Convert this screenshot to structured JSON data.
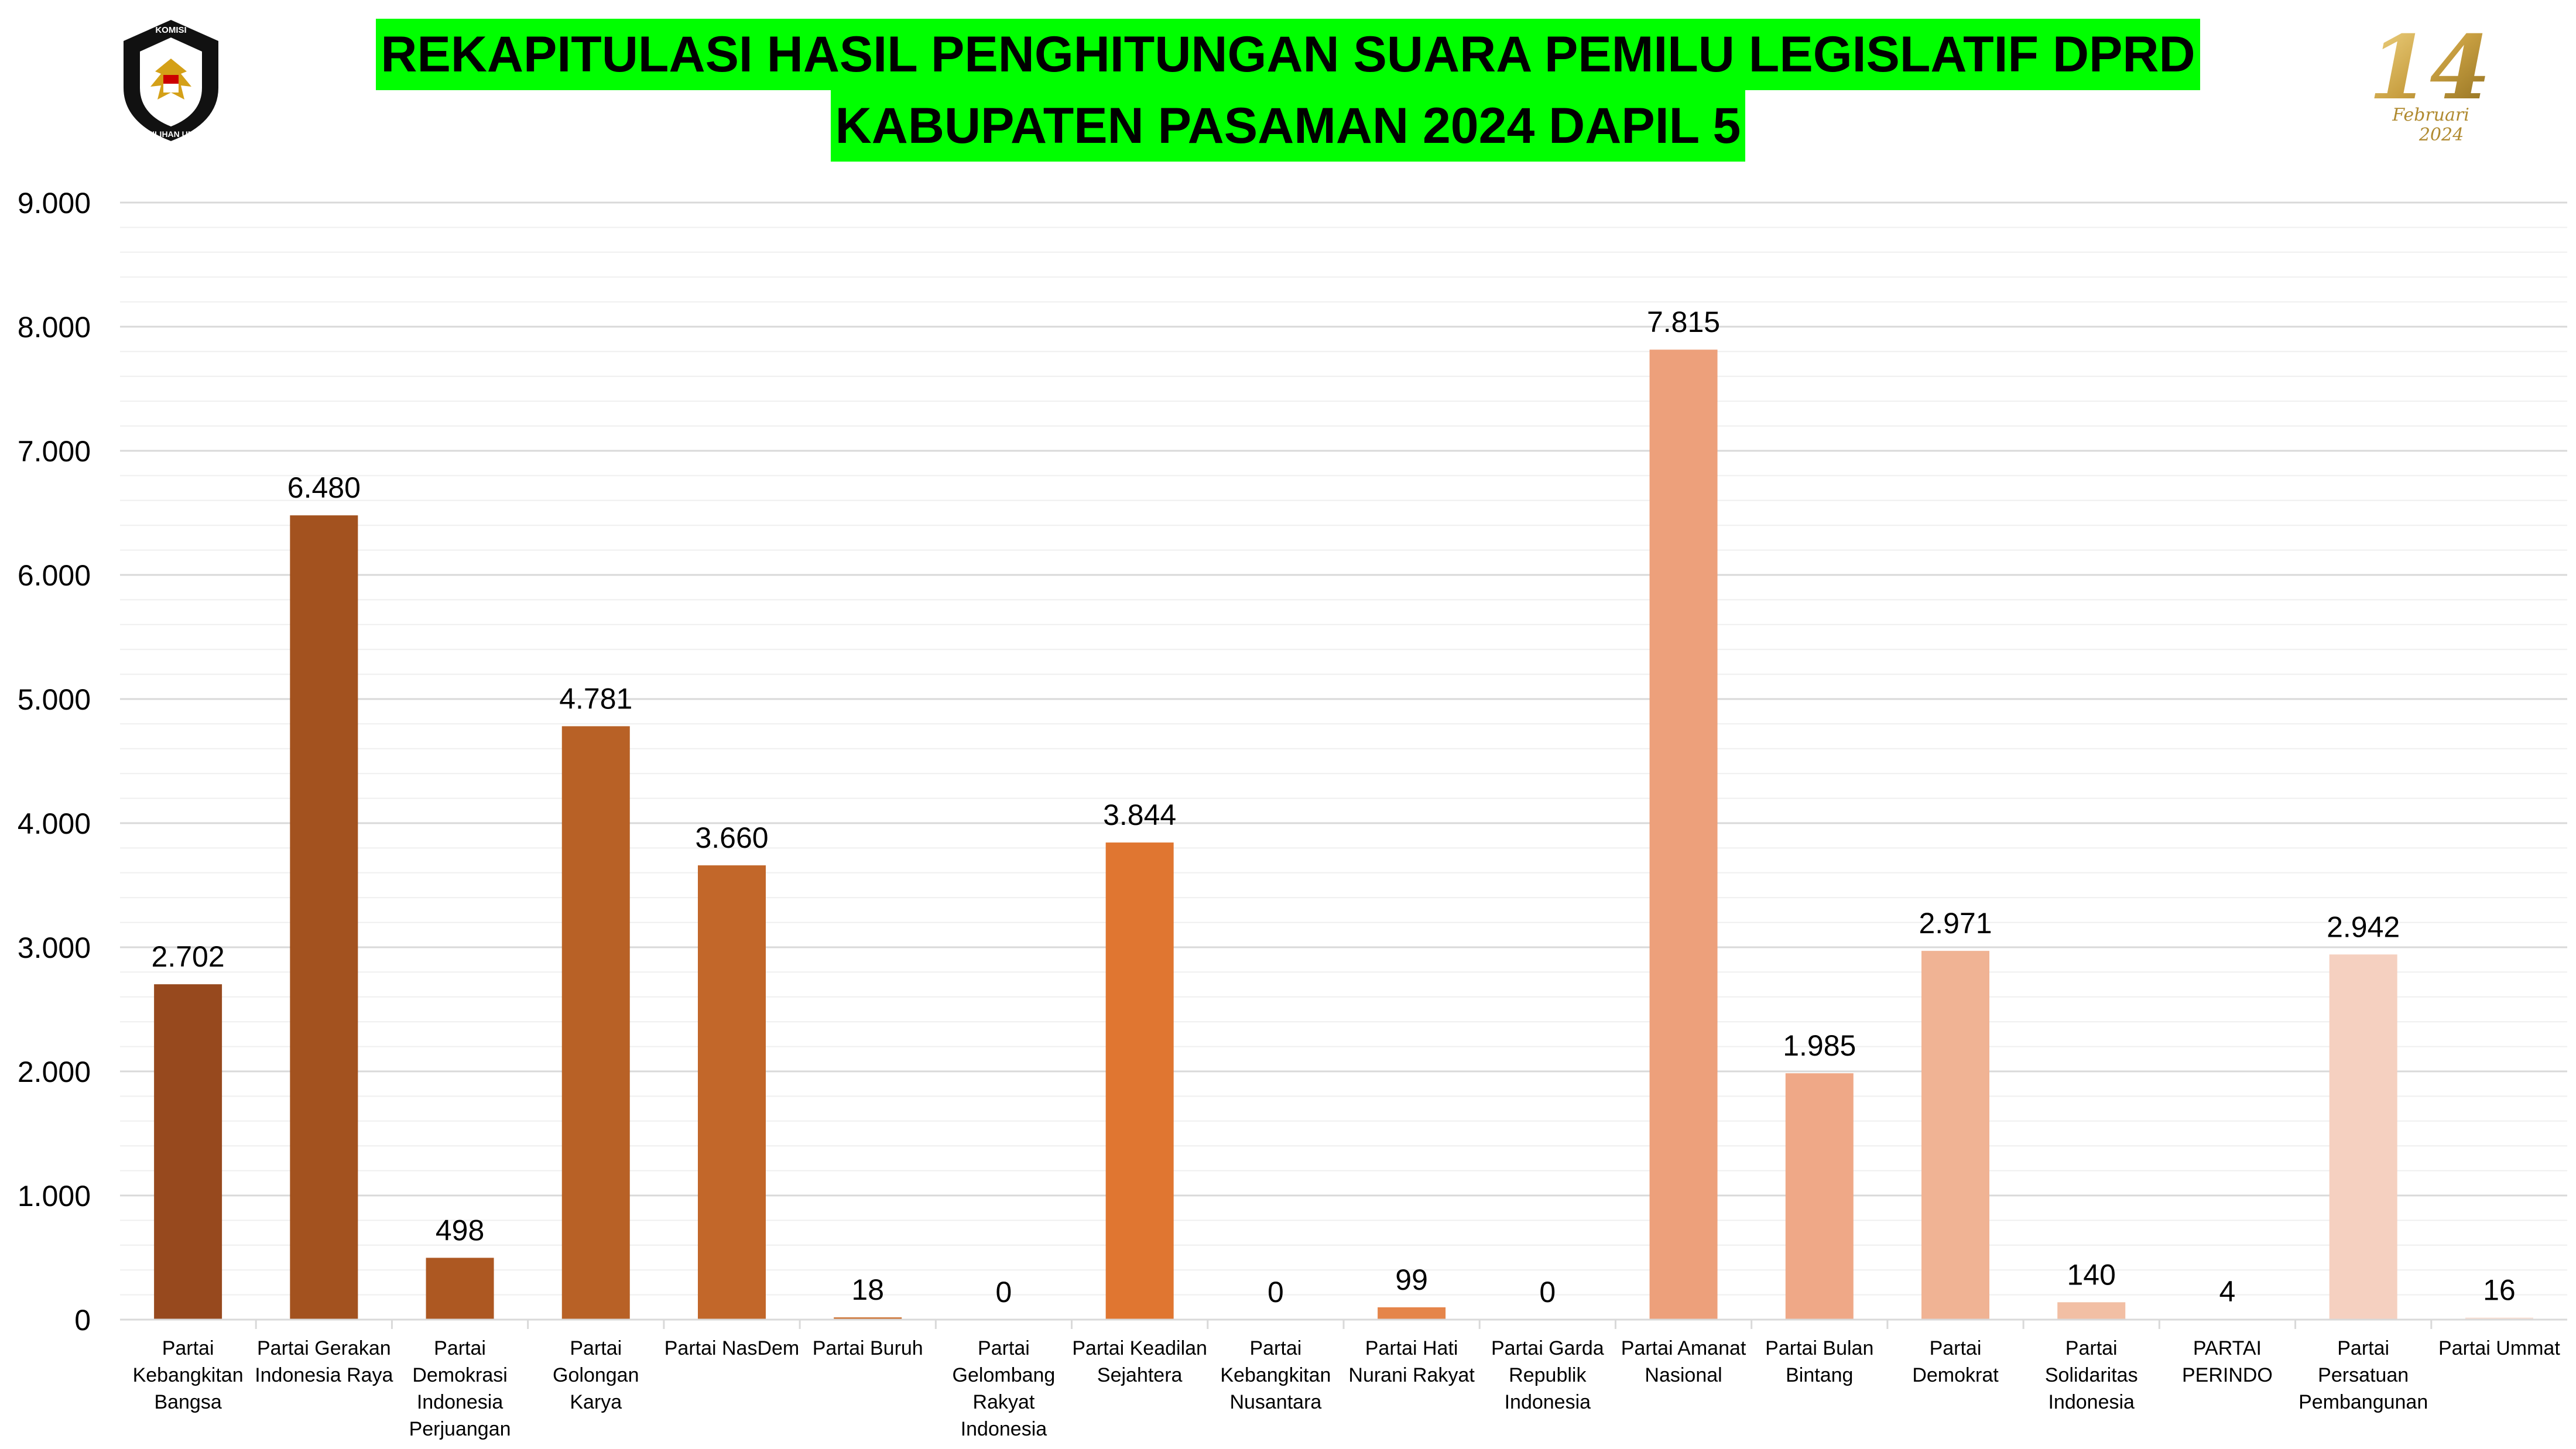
{
  "header": {
    "title_line1": "REKAPITULASI HASIL PENGHITUNGAN SUARA PEMILU LEGISLATIF DPRD",
    "title_line2": "KABUPATEN PASAMAN 2024 DAPIL 5",
    "logo_left": {
      "icon": "kpu-garuda-logo",
      "text_top": "KOMISI",
      "text_bottom": "PEMILIHAN UMUM"
    },
    "logo_right": {
      "icon": "pemilu-14-februari-2024-logo",
      "text_big": "14",
      "text_small": "Februari",
      "text_year": "2024"
    },
    "title_bg_color": "#00ff00"
  },
  "chart_data": {
    "type": "bar",
    "title": "REKAPITULASI HASIL PENGHITUNGAN SUARA PEMILU LEGISLATIF DPRD KABUPATEN PASAMAN 2024 DAPIL 5",
    "xlabel": "",
    "ylabel": "",
    "ylim": [
      0,
      9000
    ],
    "yticks": [
      "0",
      "1.000",
      "2.000",
      "3.000",
      "4.000",
      "5.000",
      "6.000",
      "7.000",
      "8.000",
      "9.000"
    ],
    "grid": true,
    "legend": "none",
    "categories": [
      "Partai Kebangkitan Bangsa",
      "Partai Gerakan Indonesia Raya",
      "Partai Demokrasi Indonesia Perjuangan",
      "Partai Golongan Karya",
      "Partai NasDem",
      "Partai Buruh",
      "Partai Gelombang Rakyat Indonesia",
      "Partai Keadilan Sejahtera",
      "Partai Kebangkitan Nusantara",
      "Partai Hati Nurani Rakyat",
      "Partai Garda Republik Indonesia",
      "Partai Amanat Nasional",
      "Partai Bulan Bintang",
      "Partai Demokrat",
      "Partai Solidaritas Indonesia",
      "PARTAI PERINDO",
      "Partai Persatuan Pembangunan",
      "Partai Ummat"
    ],
    "category_lines": [
      [
        "Partai",
        "Kebangkitan",
        "Bangsa"
      ],
      [
        "Partai Gerakan",
        "Indonesia Raya"
      ],
      [
        "Partai",
        "Demokrasi",
        "Indonesia",
        "Perjuangan"
      ],
      [
        "Partai",
        "Golongan",
        "Karya"
      ],
      [
        "Partai NasDem"
      ],
      [
        "Partai Buruh"
      ],
      [
        "Partai",
        "Gelombang",
        "Rakyat",
        "Indonesia"
      ],
      [
        "Partai Keadilan",
        "Sejahtera"
      ],
      [
        "Partai",
        "Kebangkitan",
        "Nusantara"
      ],
      [
        "Partai Hati",
        "Nurani Rakyat"
      ],
      [
        "Partai Garda",
        "Republik",
        "Indonesia"
      ],
      [
        "Partai Amanat",
        "Nasional"
      ],
      [
        "Partai Bulan",
        "Bintang"
      ],
      [
        "Partai",
        "Demokrat"
      ],
      [
        "Partai",
        "Solidaritas",
        "Indonesia"
      ],
      [
        "PARTAI",
        "PERINDO"
      ],
      [
        "Partai",
        "Persatuan",
        "Pembangunan"
      ],
      [
        "Partai Ummat"
      ]
    ],
    "values": [
      2702,
      6480,
      498,
      4781,
      3660,
      18,
      0,
      3844,
      0,
      99,
      0,
      7815,
      1985,
      2971,
      140,
      4,
      2942,
      16
    ],
    "data_labels": [
      "2.702",
      "6.480",
      "498",
      "4.781",
      "3.660",
      "18",
      "0",
      "3.844",
      "0",
      "99",
      "0",
      "7.815",
      "1.985",
      "2.971",
      "140",
      "4",
      "2.942",
      "16"
    ],
    "colors": [
      "#97491e",
      "#a3521f",
      "#ad5822",
      "#b86126",
      "#c2672a",
      "#cc6d2c",
      "#d6732f",
      "#e07631",
      "#e37c3c",
      "#e5854a",
      "#e98d54",
      "#eda07b",
      "#efa887",
      "#f0b394",
      "#f2bfa4",
      "#f3c8b2",
      "#f5d0c0",
      "#f7ddd2"
    ]
  }
}
